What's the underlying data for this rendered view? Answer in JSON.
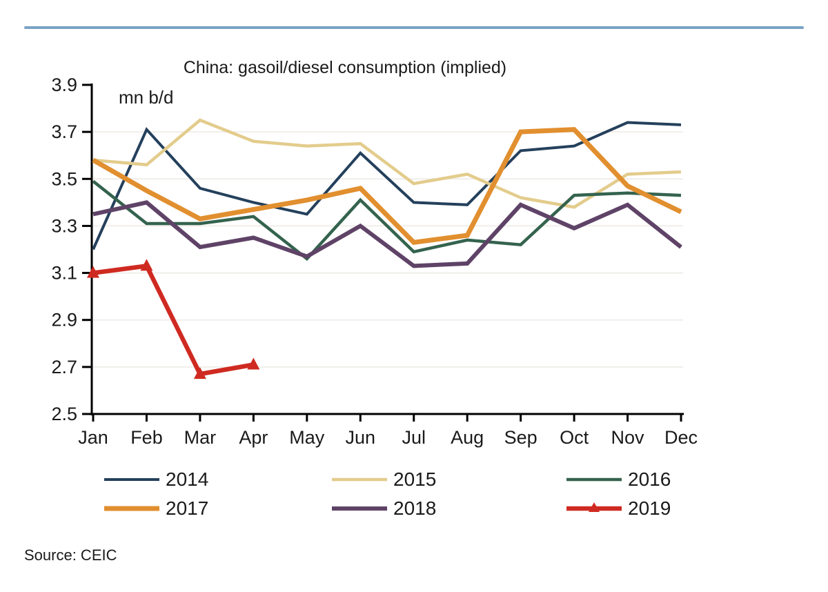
{
  "page": {
    "background": "#FFFFFF",
    "top_rule_color": "#7AA3C4",
    "axis_color": "#000000",
    "grid_color": "#F1EEEA",
    "text_color": "#1A1A1A"
  },
  "chart_data": {
    "type": "line",
    "title": "China: gasoil/diesel consumption (implied)",
    "unit_label": "mn b/d",
    "x_categories": [
      "Jan",
      "Feb",
      "Mar",
      "Apr",
      "May",
      "Jun",
      "Jul",
      "Aug",
      "Sep",
      "Oct",
      "Nov",
      "Dec"
    ],
    "ylim": [
      2.5,
      3.9
    ],
    "y_ticks": [
      2.5,
      2.7,
      2.9,
      3.1,
      3.3,
      3.5,
      3.7,
      3.9
    ],
    "y_tick_labels": [
      "2.5",
      "2.7",
      "2.9",
      "3.1",
      "3.3",
      "3.5",
      "3.7",
      "3.9"
    ],
    "grid": "horizontal-faint",
    "legend_position": "bottom",
    "series": [
      {
        "name": "2014",
        "color": "#24405C",
        "line_width": 4,
        "marker": "none",
        "values": [
          3.2,
          3.71,
          3.46,
          3.4,
          3.35,
          3.61,
          3.4,
          3.39,
          3.62,
          3.64,
          3.74,
          3.73
        ]
      },
      {
        "name": "2015",
        "color": "#E3CC8C",
        "line_width": 4.5,
        "marker": "none",
        "values": [
          3.58,
          3.56,
          3.75,
          3.66,
          3.64,
          3.65,
          3.48,
          3.52,
          3.42,
          3.38,
          3.52,
          3.53
        ]
      },
      {
        "name": "2016",
        "color": "#34634E",
        "line_width": 4.5,
        "marker": "none",
        "values": [
          3.49,
          3.31,
          3.31,
          3.34,
          3.16,
          3.41,
          3.19,
          3.24,
          3.22,
          3.43,
          3.44,
          3.43
        ]
      },
      {
        "name": "2017",
        "color": "#E18F2F",
        "line_width": 7,
        "marker": "none",
        "values": [
          3.58,
          3.45,
          3.33,
          3.37,
          3.41,
          3.46,
          3.23,
          3.26,
          3.7,
          3.71,
          3.47,
          3.36
        ]
      },
      {
        "name": "2018",
        "color": "#5F4367",
        "line_width": 6,
        "marker": "none",
        "values": [
          3.35,
          3.4,
          3.21,
          3.25,
          3.17,
          3.3,
          3.13,
          3.14,
          3.39,
          3.29,
          3.39,
          3.21
        ]
      },
      {
        "name": "2019",
        "color": "#CF2A21",
        "line_width": 6.5,
        "marker": "triangle",
        "values": [
          3.1,
          3.13,
          2.67,
          2.71,
          null,
          null,
          null,
          null,
          null,
          null,
          null,
          null
        ]
      }
    ]
  },
  "source_note": "Source: CEIC"
}
